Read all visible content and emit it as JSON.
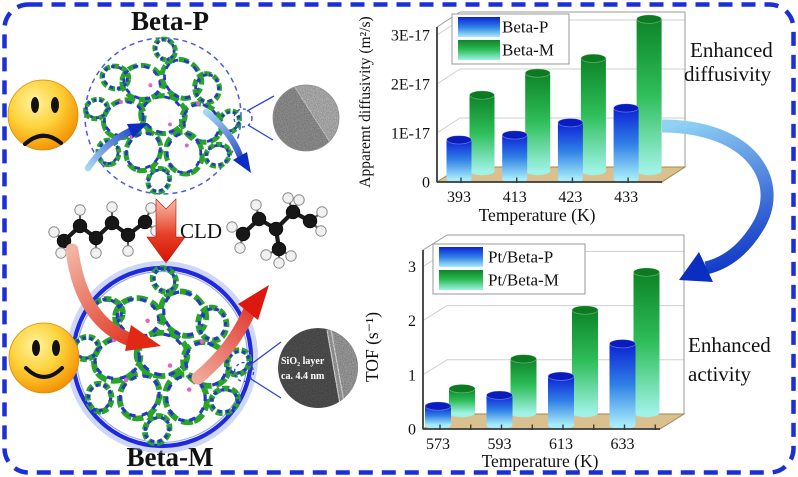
{
  "figure": {
    "beta_p_label": "Beta-P",
    "beta_m_label": "Beta-M",
    "cld_label": "CLD",
    "tem_annotation": {
      "line1": "SiO₂ layer",
      "line2": "ca. 4.4 nm"
    },
    "enhanced_diffusivity": {
      "line1": "Enhanced",
      "line2": "diffusivity"
    },
    "enhanced_activity": {
      "line1": "Enhanced",
      "line2": "activity"
    }
  },
  "chart_data": [
    {
      "type": "bar",
      "style": "pseudo-3d cylinder bars",
      "title": "",
      "categories": [
        "393",
        "413",
        "423",
        "433"
      ],
      "xlabel": "Temperature (K)",
      "ylabel": "Apparemt diffusivity (m²/s)",
      "ytick_labels": [
        "0",
        "1E-17",
        "2E-17",
        "3E-17"
      ],
      "ytick_values": [
        0,
        1,
        2,
        3
      ],
      "value_unit": "1E-17 m²/s",
      "ylim": [
        0,
        3.3
      ],
      "grid": true,
      "legend_position": "top-left",
      "series": [
        {
          "name": "Beta-P",
          "color": "blue",
          "values": [
            0.8,
            0.9,
            1.15,
            1.45
          ]
        },
        {
          "name": "Beta-M",
          "color": "green",
          "values": [
            1.55,
            2.0,
            2.3,
            3.1
          ]
        }
      ]
    },
    {
      "type": "bar",
      "style": "pseudo-3d cylinder bars",
      "title": "",
      "categories": [
        "573",
        "593",
        "613",
        "633"
      ],
      "xlabel": "Temperature (K)",
      "ylabel": "TOF (s⁻¹)",
      "ytick_labels": [
        "0",
        "1",
        "2",
        "3"
      ],
      "ytick_values": [
        0,
        1,
        2,
        3
      ],
      "value_unit": "s⁻¹",
      "ylim": [
        0,
        3.3
      ],
      "grid": true,
      "legend_position": "top-left",
      "series": [
        {
          "name": "Pt/Beta-P",
          "color": "blue",
          "values": [
            0.35,
            0.55,
            0.9,
            1.5
          ]
        },
        {
          "name": "Pt/Beta-M",
          "color": "green",
          "values": [
            0.45,
            1.0,
            1.9,
            2.6
          ]
        }
      ]
    }
  ],
  "colors": {
    "border_blue": "#1b2fd6",
    "bar_blue_top": "#0c22d6",
    "bar_blue_bottom": "#a6ecfa",
    "bar_green_top": "#0d8427",
    "bar_green_bottom": "#a0f2e6",
    "chart_floor_tan": "#d9c08e",
    "red_arrow": "#e02010",
    "ribbon_blue": "#0a30c4",
    "smiley_yellow": "#fed23a",
    "zeolite_green": "#28a428",
    "zeolite_blue": "#2a35cc"
  }
}
